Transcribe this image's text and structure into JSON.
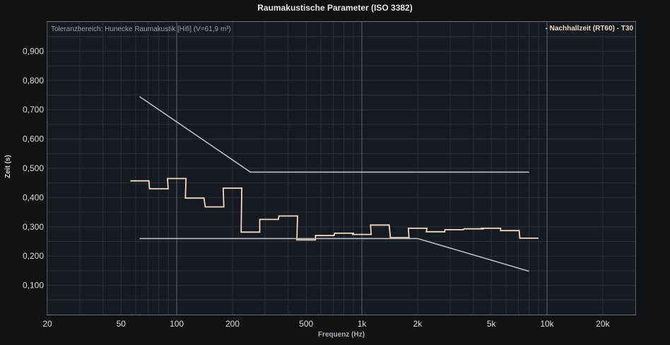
{
  "chart_data": {
    "type": "line",
    "title": "Raumakustische Parameter (ISO 3382)",
    "annotation": "Toleranzbereich: Hunecke Raumakustik [Hifi] (V=61,9 m³)",
    "legend_position": "top-right",
    "xlabel": "Frequenz (Hz)",
    "ylabel": "Zeit (s)",
    "x_scale": "log",
    "xlim": [
      20,
      30000
    ],
    "ylim": [
      0,
      1.0
    ],
    "grid": true,
    "x_ticks": [
      {
        "value": 20,
        "label": "20"
      },
      {
        "value": 50,
        "label": "50"
      },
      {
        "value": 100,
        "label": "100"
      },
      {
        "value": 200,
        "label": "200"
      },
      {
        "value": 500,
        "label": "500"
      },
      {
        "value": 1000,
        "label": "1k"
      },
      {
        "value": 2000,
        "label": "2k"
      },
      {
        "value": 5000,
        "label": "5k"
      },
      {
        "value": 10000,
        "label": "10k"
      },
      {
        "value": 20000,
        "label": "20k"
      }
    ],
    "y_ticks": [
      {
        "value": 0.1,
        "label": "0,100"
      },
      {
        "value": 0.2,
        "label": "0,200"
      },
      {
        "value": 0.3,
        "label": "0,300"
      },
      {
        "value": 0.4,
        "label": "0,400"
      },
      {
        "value": 0.5,
        "label": "0,500"
      },
      {
        "value": 0.6,
        "label": "0,600"
      },
      {
        "value": 0.7,
        "label": "0,700"
      },
      {
        "value": 0.8,
        "label": "0,800"
      },
      {
        "value": 0.9,
        "label": "0,900"
      }
    ],
    "series": [
      {
        "name": "- Nachhallzeit (RT60) - T30",
        "color": "#f0d7c0",
        "style": "step",
        "bands_hz": [
          63,
          80,
          100,
          125,
          160,
          200,
          250,
          315,
          400,
          500,
          630,
          800,
          1000,
          1250,
          1600,
          2000,
          2500,
          3150,
          4000,
          5000,
          6300,
          8000
        ],
        "values": [
          0.457,
          0.43,
          0.465,
          0.398,
          0.368,
          0.432,
          0.282,
          0.325,
          0.337,
          0.255,
          0.27,
          0.278,
          0.274,
          0.306,
          0.263,
          0.295,
          0.283,
          0.29,
          0.293,
          0.295,
          0.287,
          0.261
        ]
      },
      {
        "name": "",
        "color": "#b9bcc0",
        "style": "line",
        "x": [
          63,
          250,
          8000
        ],
        "values": [
          0.745,
          0.487,
          0.487
        ]
      },
      {
        "name": "",
        "color": "#b9bcc0",
        "style": "line",
        "x": [
          63,
          2000,
          8000
        ],
        "values": [
          0.26,
          0.26,
          0.148
        ]
      }
    ]
  }
}
